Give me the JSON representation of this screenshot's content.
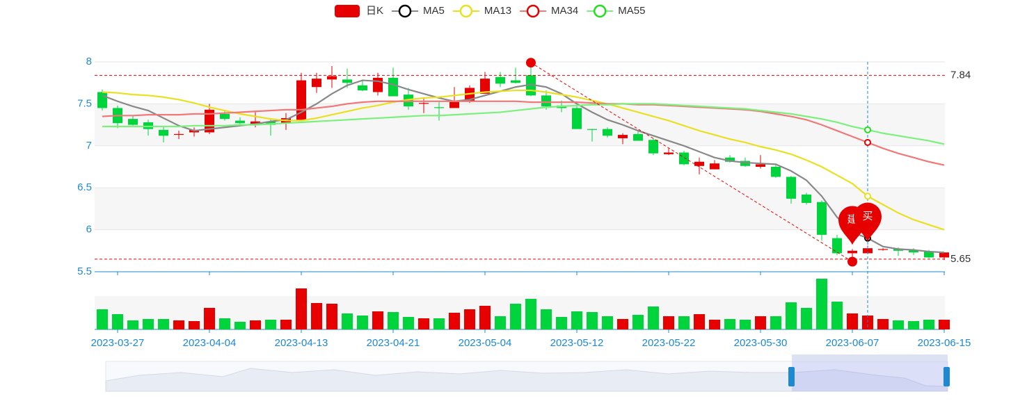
{
  "chart_data": {
    "type": "candlestick",
    "legend": "top",
    "grid": true,
    "categories": [
      null,
      "2023-03-27",
      null,
      null,
      null,
      null,
      null,
      "2023-04-04",
      null,
      null,
      null,
      null,
      null,
      "2023-04-13",
      null,
      null,
      null,
      null,
      null,
      "2023-04-21",
      null,
      null,
      null,
      null,
      null,
      "2023-05-04",
      null,
      null,
      null,
      null,
      null,
      "2023-05-12",
      null,
      null,
      null,
      null,
      null,
      "2023-05-22",
      null,
      null,
      null,
      null,
      null,
      "2023-05-30",
      null,
      null,
      null,
      null,
      null,
      "2023-06-07",
      null,
      null,
      null,
      null,
      null,
      "2023-06-15"
    ],
    "ylim": [
      5.5,
      8
    ],
    "yticks": [
      5.5,
      6,
      6.5,
      7,
      7.5,
      8
    ],
    "series": [
      {
        "name": "日K",
        "type": "candlestick",
        "up_color": "#e60000",
        "down_color": "#00d43c",
        "open": [
          7.64,
          7.45,
          7.32,
          7.28,
          7.19,
          7.13,
          7.16,
          7.16,
          7.38,
          7.3,
          7.25,
          7.29,
          7.27,
          7.31,
          7.7,
          7.79,
          7.79,
          7.72,
          7.64,
          7.81,
          7.61,
          7.5,
          7.46,
          7.45,
          7.53,
          7.62,
          7.82,
          7.78,
          7.84,
          7.6,
          7.48,
          7.45,
          7.2,
          7.2,
          7.09,
          7.14,
          7.07,
          6.9,
          6.92,
          6.76,
          6.72,
          6.86,
          6.82,
          6.75,
          6.75,
          6.63,
          6.42,
          6.33,
          5.9,
          5.72,
          5.72,
          5.76,
          5.77,
          5.76,
          5.74,
          5.67
        ],
        "close": [
          7.45,
          7.27,
          7.25,
          7.2,
          7.12,
          7.14,
          7.19,
          7.43,
          7.32,
          7.27,
          7.29,
          7.25,
          7.33,
          7.78,
          7.8,
          7.83,
          7.75,
          7.66,
          7.81,
          7.59,
          7.47,
          7.51,
          7.45,
          7.53,
          7.69,
          7.8,
          7.74,
          7.75,
          7.6,
          7.47,
          7.45,
          7.2,
          7.19,
          7.12,
          7.13,
          7.06,
          6.91,
          6.92,
          6.78,
          6.81,
          6.79,
          6.81,
          6.76,
          6.78,
          6.63,
          6.37,
          6.32,
          5.94,
          5.72,
          5.75,
          5.78,
          5.77,
          5.75,
          5.73,
          5.67,
          5.73
        ],
        "high": [
          7.67,
          7.48,
          7.36,
          7.31,
          7.23,
          7.18,
          7.22,
          7.5,
          7.41,
          7.34,
          7.4,
          7.33,
          7.39,
          7.87,
          7.87,
          7.95,
          7.92,
          7.79,
          7.87,
          7.93,
          7.69,
          7.56,
          7.54,
          7.7,
          7.72,
          7.88,
          7.88,
          7.93,
          7.99,
          7.66,
          7.54,
          7.48,
          7.2,
          7.22,
          7.15,
          7.18,
          7.09,
          6.97,
          6.94,
          6.86,
          6.83,
          6.89,
          6.86,
          6.89,
          6.77,
          6.64,
          6.44,
          6.35,
          5.94,
          5.77,
          5.81,
          5.78,
          5.79,
          5.78,
          5.76,
          5.73
        ],
        "low": [
          7.42,
          7.21,
          7.24,
          7.12,
          7.04,
          7.08,
          7.11,
          7.14,
          7.3,
          7.24,
          7.22,
          7.12,
          7.19,
          7.31,
          7.63,
          7.69,
          7.69,
          7.65,
          7.6,
          7.59,
          7.43,
          7.39,
          7.3,
          7.45,
          7.51,
          7.62,
          7.7,
          7.74,
          7.59,
          7.43,
          7.4,
          7.2,
          7.05,
          7.1,
          7.02,
          7.06,
          6.89,
          6.89,
          6.77,
          6.66,
          6.72,
          6.8,
          6.75,
          6.73,
          6.62,
          6.31,
          6.3,
          5.87,
          5.7,
          5.62,
          5.71,
          5.75,
          5.69,
          5.7,
          5.66,
          5.64
        ],
        "volume": [
          29,
          22,
          13,
          15,
          15,
          13,
          12,
          31,
          16,
          11,
          13,
          14,
          14,
          59,
          38,
          37,
          23,
          20,
          26,
          25,
          18,
          16,
          16,
          24,
          29,
          34,
          19,
          37,
          44,
          29,
          18,
          26,
          25,
          19,
          15,
          21,
          33,
          19,
          19,
          22,
          14,
          15,
          14,
          19,
          19,
          39,
          31,
          73,
          40,
          23,
          20,
          15,
          13,
          12,
          14,
          14
        ]
      },
      {
        "name": "MA5",
        "type": "line",
        "color": "#888888",
        "icon_color": "#000000",
        "values": [
          7.6,
          7.53,
          7.47,
          7.42,
          7.33,
          7.24,
          7.18,
          7.2,
          7.22,
          7.24,
          7.26,
          7.29,
          7.31,
          7.4,
          7.5,
          7.62,
          7.72,
          7.78,
          7.77,
          7.73,
          7.67,
          7.62,
          7.57,
          7.53,
          7.55,
          7.6,
          7.65,
          7.7,
          7.73,
          7.7,
          7.62,
          7.5,
          7.4,
          7.31,
          7.25,
          7.18,
          7.12,
          7.06,
          7.0,
          6.93,
          6.86,
          6.82,
          6.8,
          6.79,
          6.78,
          6.7,
          6.59,
          6.4,
          6.15,
          5.97,
          5.9,
          5.8,
          5.77,
          5.76,
          5.74,
          5.73
        ]
      },
      {
        "name": "MA13",
        "type": "line",
        "color": "#e8e020",
        "icon_color": "#e8e020",
        "values": [
          7.64,
          7.63,
          7.61,
          7.6,
          7.58,
          7.55,
          7.51,
          7.46,
          7.42,
          7.38,
          7.35,
          7.32,
          7.3,
          7.3,
          7.33,
          7.37,
          7.41,
          7.45,
          7.48,
          7.52,
          7.55,
          7.57,
          7.58,
          7.6,
          7.62,
          7.64,
          7.65,
          7.66,
          7.66,
          7.64,
          7.61,
          7.58,
          7.54,
          7.5,
          7.45,
          7.4,
          7.35,
          7.3,
          7.24,
          7.18,
          7.13,
          7.08,
          7.04,
          6.99,
          6.95,
          6.9,
          6.83,
          6.75,
          6.65,
          6.55,
          6.4,
          6.3,
          6.2,
          6.12,
          6.06,
          6.0
        ]
      },
      {
        "name": "MA34",
        "type": "line",
        "color": "#f07878",
        "icon_color": "#e60000",
        "values": [
          7.35,
          7.36,
          7.36,
          7.37,
          7.37,
          7.37,
          7.38,
          7.38,
          7.39,
          7.4,
          7.41,
          7.42,
          7.43,
          7.43,
          7.45,
          7.47,
          7.5,
          7.52,
          7.53,
          7.53,
          7.53,
          7.53,
          7.53,
          7.53,
          7.53,
          7.53,
          7.53,
          7.53,
          7.52,
          7.52,
          7.52,
          7.52,
          7.51,
          7.5,
          7.5,
          7.49,
          7.49,
          7.48,
          7.47,
          7.46,
          7.45,
          7.44,
          7.43,
          7.41,
          7.38,
          7.35,
          7.31,
          7.25,
          7.18,
          7.11,
          7.04,
          6.97,
          6.91,
          6.86,
          6.81,
          6.77
        ]
      },
      {
        "name": "MA55",
        "type": "line",
        "color": "#7cf07c",
        "icon_color": "#22dd22",
        "values": [
          7.23,
          7.23,
          7.23,
          7.23,
          7.23,
          7.23,
          7.24,
          7.24,
          7.24,
          7.25,
          7.25,
          7.26,
          7.27,
          7.28,
          7.29,
          7.3,
          7.31,
          7.32,
          7.33,
          7.34,
          7.35,
          7.36,
          7.36,
          7.37,
          7.38,
          7.39,
          7.4,
          7.42,
          7.44,
          7.46,
          7.47,
          7.48,
          7.49,
          7.49,
          7.5,
          7.5,
          7.5,
          7.49,
          7.48,
          7.47,
          7.46,
          7.45,
          7.44,
          7.42,
          7.4,
          7.38,
          7.35,
          7.32,
          7.28,
          7.23,
          7.19,
          7.15,
          7.12,
          7.09,
          7.06,
          7.02
        ]
      }
    ],
    "mark_lines": [
      7.84,
      5.65
    ],
    "mark_color": "#e60000",
    "trend_line": true,
    "pins": [
      {
        "label": "建",
        "category_index": 49
      },
      {
        "label": "买",
        "category_index": 50
      }
    ],
    "cursor_index": 50,
    "axis_color": "#1e88d0"
  }
}
